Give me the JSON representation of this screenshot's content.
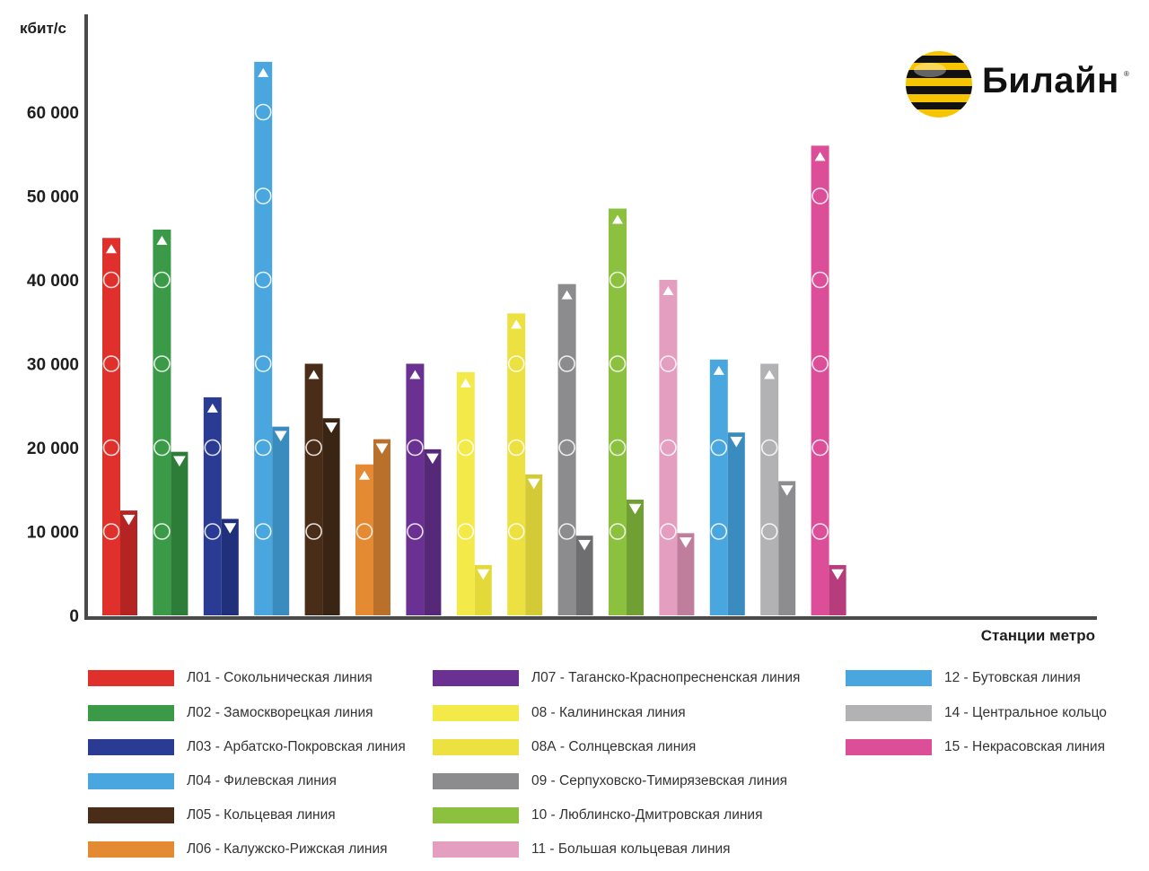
{
  "chart_data": {
    "type": "bar",
    "ylabel": "кбит/с",
    "xlabel": "Станции метро",
    "ylim": [
      0,
      70000
    ],
    "yticks": [
      0,
      10000,
      20000,
      30000,
      40000,
      50000,
      60000
    ],
    "ytick_labels": [
      "0",
      "10 000",
      "20 000",
      "30 000",
      "40 000",
      "50 000",
      "60 000"
    ],
    "categories": [
      "Л01",
      "Л02",
      "Л03",
      "Л04",
      "Л05",
      "Л06",
      "Л07",
      "08",
      "08А",
      "09",
      "10",
      "11",
      "12",
      "14",
      "15"
    ],
    "series": [
      {
        "marker": "up-triangle",
        "values": [
          45000,
          46000,
          26000,
          66000,
          30000,
          18000,
          30000,
          29000,
          36000,
          39500,
          48500,
          40000,
          30500,
          30000,
          56000
        ]
      },
      {
        "marker": "down-triangle",
        "values": [
          12500,
          19500,
          11500,
          22500,
          23500,
          21000,
          19800,
          6000,
          16800,
          9500,
          13800,
          9800,
          21800,
          16000,
          6000
        ]
      }
    ],
    "colors_primary": [
      "#e0302c",
      "#3a9a48",
      "#2a3b93",
      "#4aa6df",
      "#4a2d18",
      "#e48a33",
      "#6a3192",
      "#f3ea4a",
      "#ede142",
      "#8c8c8e",
      "#8cc13f",
      "#e49ec0",
      "#4aa6df",
      "#b2b2b4",
      "#dc4e97"
    ],
    "colors_secondary": [
      "#b32422",
      "#2d7d39",
      "#20307a",
      "#3b8cbe",
      "#3a2413",
      "#b8702a",
      "#552878",
      "#e3da3a",
      "#d4ca35",
      "#6e6e70",
      "#70a034",
      "#c07e9d",
      "#3b8cbe",
      "#8d8d8f",
      "#b63c7b"
    ]
  },
  "legend": [
    {
      "label": "Л01 - Сокольническая линия",
      "color": "#e0302c"
    },
    {
      "label": "Л02 - Замоскворецкая линия",
      "color": "#3a9a48"
    },
    {
      "label": "Л03 - Арбатско-Покровская линия",
      "color": "#2a3b93"
    },
    {
      "label": "Л04 - Филевская линия",
      "color": "#4aa6df"
    },
    {
      "label": "Л05 - Кольцевая линия",
      "color": "#4a2d18"
    },
    {
      "label": "Л06 - Калужско-Рижская линия",
      "color": "#e48a33"
    },
    {
      "label": "Л07 - Таганско-Краснопресненская линия",
      "color": "#6a3192"
    },
    {
      "label": "08 - Калининская линия",
      "color": "#f3ea4a"
    },
    {
      "label": "08А - Солнцевская линия",
      "color": "#ede142"
    },
    {
      "label": "09 - Серпуховско-Тимирязевская линия",
      "color": "#8c8c8e"
    },
    {
      "label": "10 - Люблинско-Дмитровская линия",
      "color": "#8cc13f"
    },
    {
      "label": "11 - Большая кольцевая линия",
      "color": "#e49ec0"
    },
    {
      "label": "12 - Бутовская линия",
      "color": "#4aa6df"
    },
    {
      "label": "14 - Центральное кольцо",
      "color": "#b2b2b4"
    },
    {
      "label": "15 - Некрасовская линия",
      "color": "#dc4e97"
    }
  ],
  "logo": {
    "text": "Билайн",
    "reg": "®",
    "colors": {
      "yellow": "#f6c400",
      "black": "#111111"
    }
  }
}
